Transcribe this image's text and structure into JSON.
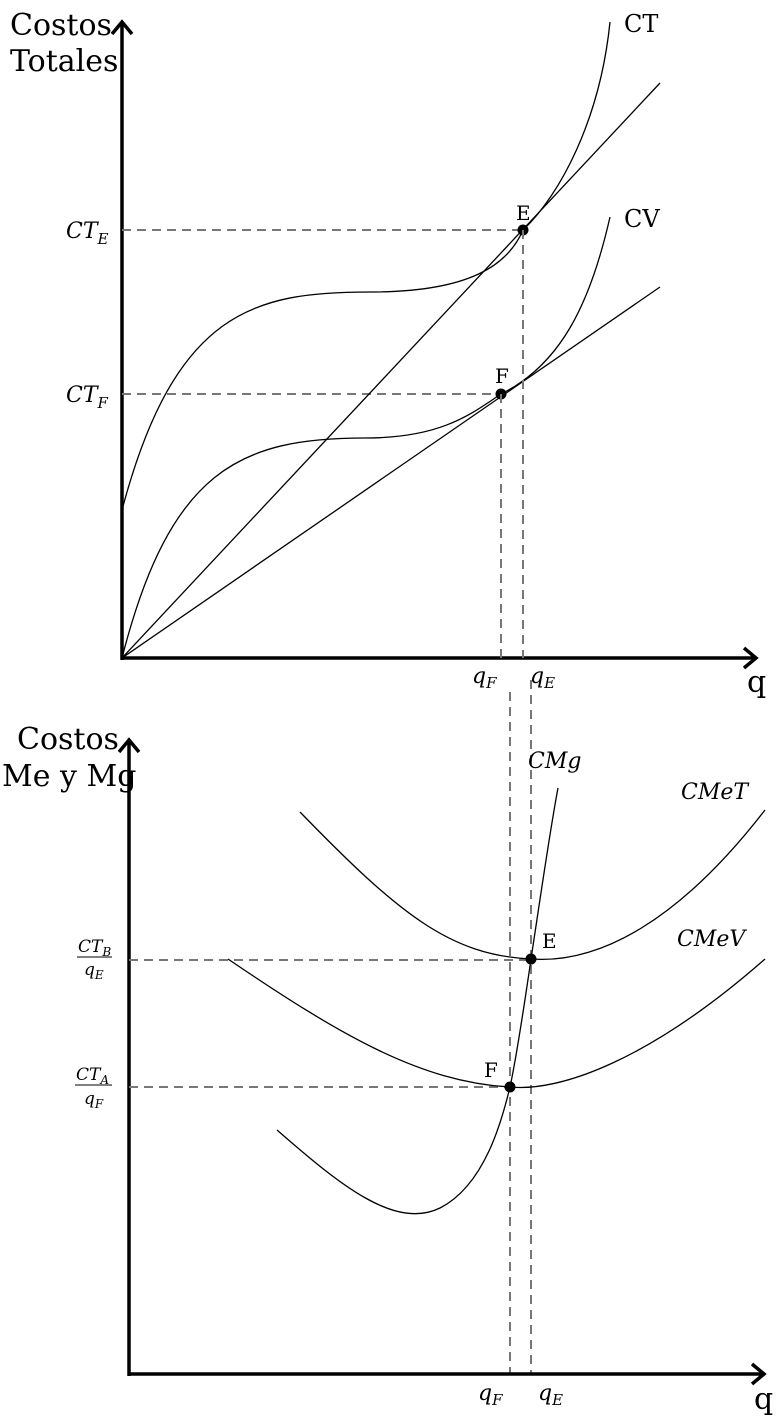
{
  "top": {
    "ylabel_line1": "Costos",
    "ylabel_line2": "Totales",
    "xlabel": "q",
    "curve_ct": "CT",
    "curve_cv": "CV",
    "point_e": "E",
    "point_f": "F",
    "tick_ct_e_main": "CT",
    "tick_ct_e_sub": "E",
    "tick_ct_f_main": "CT",
    "tick_ct_f_sub": "F",
    "tick_qf_main": "q",
    "tick_qf_sub": "F",
    "tick_qe_main": "q",
    "tick_qe_sub": "E"
  },
  "bottom": {
    "ylabel_line1": "Costos",
    "ylabel_line2": "Me y Mg",
    "xlabel": "q",
    "curve_cmg": "CMg",
    "curve_cmet": "CMeT",
    "curve_cmev": "CMeV",
    "point_e": "E",
    "point_f": "F",
    "frac_b_num_main": "CT",
    "frac_b_num_sub": "B",
    "frac_b_den_main": "q",
    "frac_b_den_sub": "E",
    "frac_a_num_main": "CT",
    "frac_a_num_sub": "A",
    "frac_a_den_main": "q",
    "frac_a_den_sub": "F",
    "tick_qf_main": "q",
    "tick_qf_sub": "F",
    "tick_qe_main": "q",
    "tick_qe_sub": "E"
  }
}
